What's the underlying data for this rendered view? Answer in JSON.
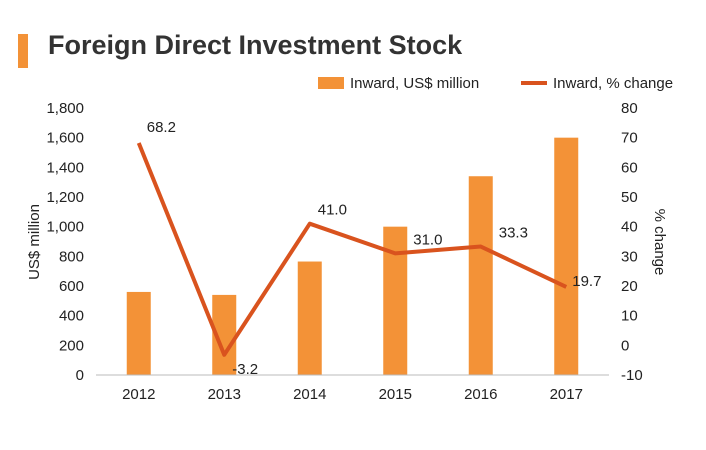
{
  "colors": {
    "bar": "#F39237",
    "line": "#D9531E",
    "title_bar": "#F39237"
  },
  "chart_data": {
    "type": "bar+line",
    "title": "Foreign Direct Investment Stock",
    "categories": [
      "2012",
      "2013",
      "2014",
      "2015",
      "2016",
      "2017"
    ],
    "series": [
      {
        "name": "Inward, US$ million",
        "type": "bar",
        "axis": "left",
        "values": [
          560,
          540,
          765,
          1000,
          1340,
          1600
        ]
      },
      {
        "name": "Inward, % change",
        "type": "line",
        "axis": "right",
        "values": [
          68.2,
          -3.2,
          41.0,
          31.0,
          33.3,
          19.7
        ],
        "labels": [
          "68.2",
          "-3.2",
          "41.0",
          "31.0",
          "33.3",
          "19.7"
        ]
      }
    ],
    "ylabel_left": "US$ million",
    "ylabel_right": "% change",
    "ylim_left": [
      0,
      1800
    ],
    "ylim_right": [
      -10,
      80
    ],
    "yticks_left": [
      "0",
      "200",
      "400",
      "600",
      "800",
      "1,000",
      "1,200",
      "1,400",
      "1,600",
      "1,800"
    ],
    "yticks_right": [
      "-10",
      "0",
      "10",
      "20",
      "30",
      "40",
      "50",
      "60",
      "70",
      "80"
    ],
    "legend_position": "top-right"
  }
}
